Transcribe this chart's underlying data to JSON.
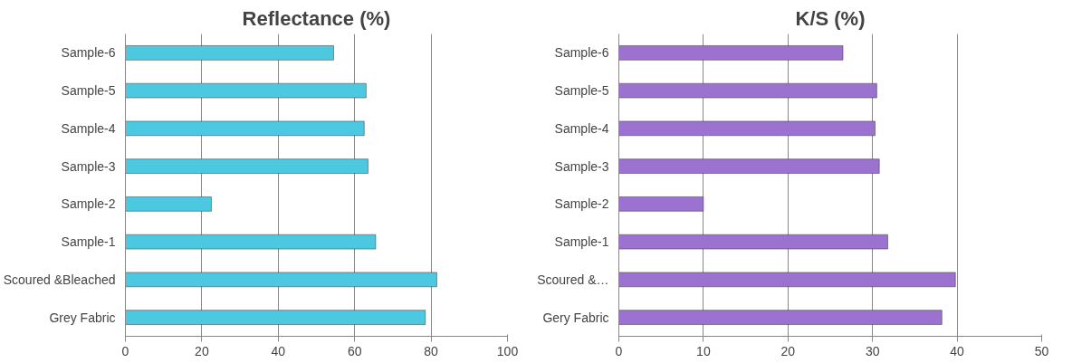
{
  "chart_data": [
    {
      "type": "bar",
      "orientation": "horizontal",
      "title": "Reflectance (%)",
      "categories": [
        "Sample-6",
        "Sample-5",
        "Sample-4",
        "Sample-3",
        "Sample-2",
        "Sample-1",
        "Scoured &Bleached",
        "Grey Fabric"
      ],
      "values": [
        54.5,
        63,
        62.5,
        63.5,
        22.5,
        65.5,
        81.5,
        78.5
      ],
      "color": "#4cc9e0",
      "xlim": [
        0,
        100
      ],
      "xticks": [
        0,
        20,
        40,
        60,
        80,
        100
      ],
      "grid": "x"
    },
    {
      "type": "bar",
      "orientation": "horizontal",
      "title": "K/S (%)",
      "categories": [
        "Sample-6",
        "Sample-5",
        "Sample-4",
        "Sample-3",
        "Sample-2",
        "Sample-1",
        "Scoured &…",
        "Gery Fabric"
      ],
      "values": [
        26.5,
        30.5,
        30.3,
        30.8,
        10,
        31.8,
        39.8,
        38.2
      ],
      "color": "#9b72cf",
      "xlim": [
        0,
        50
      ],
      "xticks": [
        0,
        10,
        20,
        30,
        40,
        50
      ],
      "grid": "x"
    }
  ]
}
